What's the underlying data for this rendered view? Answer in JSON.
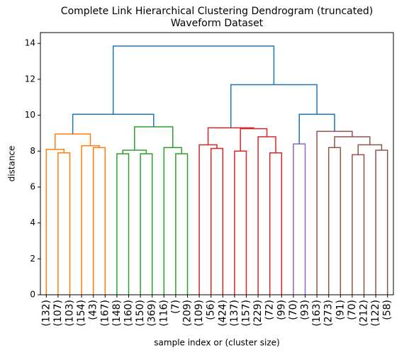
{
  "chart_data": {
    "type": "dendrogram",
    "title": "Complete Link Hierarchical Clustering Dendrogram (truncated)",
    "subtitle": "Waveform Dataset",
    "xlabel": "sample index or (cluster size)",
    "ylabel": "distance",
    "xlim": [
      0,
      300
    ],
    "ylim": [
      0,
      14.6
    ],
    "yticks": [
      0,
      2,
      4,
      6,
      8,
      10,
      12,
      14
    ],
    "xticks": [
      {
        "value": 5,
        "label": "(132)"
      },
      {
        "value": 15,
        "label": "(107)"
      },
      {
        "value": 25,
        "label": "(103)"
      },
      {
        "value": 35,
        "label": "(154)"
      },
      {
        "value": 45,
        "label": "(43)"
      },
      {
        "value": 55,
        "label": "(167)"
      },
      {
        "value": 65,
        "label": "(148)"
      },
      {
        "value": 75,
        "label": "(160)"
      },
      {
        "value": 85,
        "label": "(150)"
      },
      {
        "value": 95,
        "label": "(369)"
      },
      {
        "value": 105,
        "label": "(116)"
      },
      {
        "value": 115,
        "label": "(7)"
      },
      {
        "value": 125,
        "label": "(209)"
      },
      {
        "value": 135,
        "label": "(109)"
      },
      {
        "value": 145,
        "label": "(56)"
      },
      {
        "value": 155,
        "label": "(424)"
      },
      {
        "value": 165,
        "label": "(137)"
      },
      {
        "value": 175,
        "label": "(157)"
      },
      {
        "value": 185,
        "label": "(229)"
      },
      {
        "value": 195,
        "label": "(72)"
      },
      {
        "value": 205,
        "label": "(99)"
      },
      {
        "value": 215,
        "label": "(70)"
      },
      {
        "value": 225,
        "label": "(93)"
      },
      {
        "value": 235,
        "label": "(163)"
      },
      {
        "value": 245,
        "label": "(273)"
      },
      {
        "value": 255,
        "label": "(91)"
      },
      {
        "value": 265,
        "label": "(70)"
      },
      {
        "value": 275,
        "label": "(212)"
      },
      {
        "value": 285,
        "label": "(122)"
      },
      {
        "value": 295,
        "label": "(58)"
      }
    ],
    "links": [
      {
        "x": [
          15,
          15,
          25,
          25
        ],
        "y": [
          0,
          7.9,
          7.9,
          0
        ],
        "color": "#ff7f0e"
      },
      {
        "x": [
          5,
          5,
          20,
          20
        ],
        "y": [
          0,
          8.1,
          8.1,
          7.9
        ],
        "color": "#ff7f0e"
      },
      {
        "x": [
          45,
          45,
          55,
          55
        ],
        "y": [
          0,
          8.2,
          8.2,
          0
        ],
        "color": "#ff7f0e"
      },
      {
        "x": [
          35,
          35,
          50,
          50
        ],
        "y": [
          0,
          8.3,
          8.3,
          8.2
        ],
        "color": "#ff7f0e"
      },
      {
        "x": [
          12.5,
          12.5,
          42.5,
          42.5
        ],
        "y": [
          8.1,
          8.95,
          8.95,
          8.3
        ],
        "color": "#ff7f0e"
      },
      {
        "x": [
          65,
          65,
          75,
          75
        ],
        "y": [
          0,
          7.85,
          7.85,
          0
        ],
        "color": "#2ca02c"
      },
      {
        "x": [
          85,
          85,
          95,
          95
        ],
        "y": [
          0,
          7.85,
          7.85,
          0
        ],
        "color": "#2ca02c"
      },
      {
        "x": [
          70,
          70,
          90,
          90
        ],
        "y": [
          7.85,
          8.05,
          8.05,
          7.85
        ],
        "color": "#2ca02c"
      },
      {
        "x": [
          115,
          115,
          125,
          125
        ],
        "y": [
          0,
          7.85,
          7.85,
          0
        ],
        "color": "#2ca02c"
      },
      {
        "x": [
          105,
          105,
          120,
          120
        ],
        "y": [
          0,
          8.2,
          8.2,
          7.85
        ],
        "color": "#2ca02c"
      },
      {
        "x": [
          80,
          80,
          112.5,
          112.5
        ],
        "y": [
          8.05,
          9.35,
          9.35,
          8.2
        ],
        "color": "#2ca02c"
      },
      {
        "x": [
          27.5,
          27.5,
          96.25,
          96.25
        ],
        "y": [
          8.95,
          10.05,
          10.05,
          9.35
        ],
        "color": "#1f77b4"
      },
      {
        "x": [
          145,
          145,
          155,
          155
        ],
        "y": [
          0,
          8.15,
          8.15,
          0
        ],
        "color": "#d62728"
      },
      {
        "x": [
          135,
          135,
          150,
          150
        ],
        "y": [
          0,
          8.35,
          8.35,
          8.15
        ],
        "color": "#d62728"
      },
      {
        "x": [
          165,
          165,
          175,
          175
        ],
        "y": [
          0,
          8.0,
          8.0,
          0
        ],
        "color": "#d62728"
      },
      {
        "x": [
          195,
          195,
          205,
          205
        ],
        "y": [
          0,
          7.9,
          7.9,
          0
        ],
        "color": "#d62728"
      },
      {
        "x": [
          185,
          185,
          200,
          200
        ],
        "y": [
          0,
          8.8,
          8.8,
          7.9
        ],
        "color": "#d62728"
      },
      {
        "x": [
          170,
          170,
          192.5,
          192.5
        ],
        "y": [
          8.0,
          9.25,
          9.25,
          8.8
        ],
        "color": "#d62728"
      },
      {
        "x": [
          142.5,
          142.5,
          181.25,
          181.25
        ],
        "y": [
          8.35,
          9.3,
          9.3,
          9.25
        ],
        "color": "#d62728"
      },
      {
        "x": [
          215,
          215,
          225,
          225
        ],
        "y": [
          0,
          8.4,
          8.4,
          0
        ],
        "color": "#9467bd"
      },
      {
        "x": [
          245,
          245,
          255,
          255
        ],
        "y": [
          0,
          8.2,
          8.2,
          0
        ],
        "color": "#8c564b"
      },
      {
        "x": [
          265,
          265,
          275,
          275
        ],
        "y": [
          0,
          7.8,
          7.8,
          0
        ],
        "color": "#8c564b"
      },
      {
        "x": [
          285,
          285,
          295,
          295
        ],
        "y": [
          0,
          8.05,
          8.05,
          0
        ],
        "color": "#8c564b"
      },
      {
        "x": [
          270,
          270,
          290,
          290
        ],
        "y": [
          7.8,
          8.35,
          8.35,
          8.05
        ],
        "color": "#8c564b"
      },
      {
        "x": [
          250,
          250,
          280,
          280
        ],
        "y": [
          8.2,
          8.8,
          8.8,
          8.35
        ],
        "color": "#8c564b"
      },
      {
        "x": [
          235,
          235,
          265,
          265
        ],
        "y": [
          0,
          9.1,
          9.1,
          8.8
        ],
        "color": "#8c564b"
      },
      {
        "x": [
          220,
          220,
          250,
          250
        ],
        "y": [
          8.4,
          10.05,
          10.05,
          9.1
        ],
        "color": "#1f77b4"
      },
      {
        "x": [
          161.875,
          161.875,
          235,
          235
        ],
        "y": [
          9.3,
          11.7,
          11.7,
          10.05
        ],
        "color": "#1f77b4"
      },
      {
        "x": [
          61.875,
          61.875,
          198.4375,
          198.4375
        ],
        "y": [
          10.05,
          13.85,
          13.85,
          11.7
        ],
        "color": "#1f77b4"
      }
    ]
  }
}
